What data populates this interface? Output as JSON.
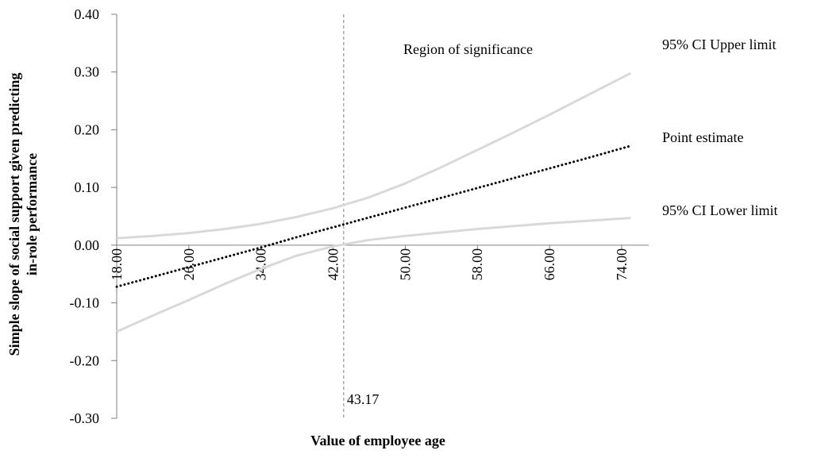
{
  "chart_data": {
    "type": "line",
    "x_label": "Value of employee age",
    "y_label": [
      "Simple slope of social support given predicting",
      "in-role performance"
    ],
    "annotation": "Region of significance",
    "threshold": 43.17,
    "x": [
      18,
      22,
      26,
      30,
      34,
      38,
      42,
      46,
      50,
      54,
      58,
      62,
      66,
      70,
      75
    ],
    "series": [
      {
        "name": "95% CI Upper limit",
        "color": "#d9d9d9",
        "style": "solid",
        "values": [
          0.012,
          0.016,
          0.021,
          0.028,
          0.037,
          0.049,
          0.064,
          0.083,
          0.107,
          0.135,
          0.165,
          0.195,
          0.226,
          0.258,
          0.298
        ]
      },
      {
        "name": "Point estimate",
        "color": "#000000",
        "style": "dotted",
        "values": [
          -0.072,
          -0.055,
          -0.038,
          -0.021,
          -0.004,
          0.014,
          0.031,
          0.048,
          0.065,
          0.082,
          0.099,
          0.116,
          0.133,
          0.15,
          0.172
        ]
      },
      {
        "name": "95% CI Lower limit",
        "color": "#d9d9d9",
        "style": "solid",
        "values": [
          -0.15,
          -0.122,
          -0.095,
          -0.067,
          -0.041,
          -0.018,
          -0.002,
          0.009,
          0.016,
          0.022,
          0.028,
          0.033,
          0.038,
          0.042,
          0.047
        ]
      }
    ],
    "xlim": [
      18,
      77
    ],
    "ylim": [
      -0.3,
      0.4
    ],
    "xticks": [
      {
        "value": 18,
        "label": "18.00"
      },
      {
        "value": 26,
        "label": "26.00"
      },
      {
        "value": 34,
        "label": "34.00"
      },
      {
        "value": 42,
        "label": "42.00"
      },
      {
        "value": 50,
        "label": "50.00"
      },
      {
        "value": 58,
        "label": "58.00"
      },
      {
        "value": 66,
        "label": "66.00"
      },
      {
        "value": 74,
        "label": "74.00"
      }
    ],
    "yticks": [
      {
        "value": 0.4,
        "label": "0.40"
      },
      {
        "value": 0.3,
        "label": "0.30"
      },
      {
        "value": 0.2,
        "label": "0.20"
      },
      {
        "value": 0.1,
        "label": "0.10"
      },
      {
        "value": 0,
        "label": "0.00"
      },
      {
        "value": -0.1,
        "label": "-0.10"
      },
      {
        "value": -0.2,
        "label": "-0.20"
      },
      {
        "value": -0.3,
        "label": "-0.30"
      }
    ]
  }
}
